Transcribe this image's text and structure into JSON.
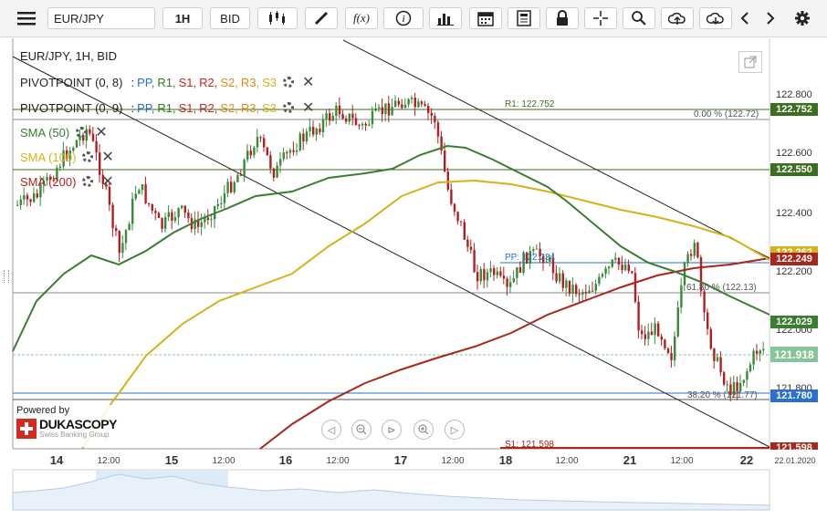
{
  "toolbar": {
    "menu_icon": "hamburger-icon",
    "instrument": "EUR/JPY",
    "period": "1H",
    "side": "BID",
    "fx_label": "f(x)"
  },
  "chart_header": "EUR/JPY, 1H, BID",
  "indicators": [
    {
      "name": "PIVOTPOINT (0, 8)",
      "lines": [
        ":",
        "PP,",
        "R1,",
        "S1,",
        "R2,",
        "S2,",
        "R3,",
        "S3"
      ]
    },
    {
      "name": "PIVOTPOINT (0, 9)",
      "lines": [
        ":",
        "PP,",
        "R1,",
        "S1,",
        "R2,",
        "S2,",
        "R3,",
        "S3"
      ]
    },
    {
      "name": "SMA (50)",
      "color": "#3a7d32"
    },
    {
      "name": "SMA (100)",
      "color": "#d4b21a"
    },
    {
      "name": "SMA (200)",
      "color": "#a8261a"
    }
  ],
  "pivot_colors": [
    "#222",
    "#2a6fd1",
    "#2a7d1d",
    "#c22",
    "#c22",
    "#e08a12",
    "#e08a12",
    "#d4b21a",
    "#d4b21a"
  ],
  "annotations": {
    "r1": "R1: 122.752",
    "fib0": "0.00 % (122.72)",
    "pp": "PP: 122.234",
    "fib618": "61.80 % (122.13)",
    "fib382": "38.20 % (121.77)",
    "s1": "S1: 121.598"
  },
  "price_axis": [
    "122.800",
    "122.600",
    "122.400",
    "122.200",
    "122.000",
    "121.800"
  ],
  "price_boxes": [
    {
      "label": "122.752",
      "color": "#3c6e1f"
    },
    {
      "label": "122.550",
      "color": "#3c6e1f"
    },
    {
      "label": "122.262",
      "color": "#d4b21a"
    },
    {
      "label": "122.249",
      "color": "#a8261a"
    },
    {
      "label": "122.029",
      "color": "#3a7d32"
    },
    {
      "label": "121.918",
      "color": "#86c59a"
    },
    {
      "label": "121.780",
      "color": "#2a6fd1"
    },
    {
      "label": "121.598",
      "color": "#a8261a"
    }
  ],
  "time_axis": [
    "14",
    "12:00",
    "15",
    "12:00",
    "16",
    "12:00",
    "17",
    "12:00",
    "18",
    "12:00",
    "21",
    "12:00",
    "22",
    "22.01.2020"
  ],
  "branding": {
    "powered_by": "Powered by",
    "name": "DUKASCOPY",
    "tagline": "Swiss Banking Group"
  },
  "colors": {
    "sma50": "#3a7d32",
    "sma100": "#d4b21a",
    "sma200": "#a8261a",
    "bull": "#3a8a3a",
    "bear": "#b02020"
  }
}
